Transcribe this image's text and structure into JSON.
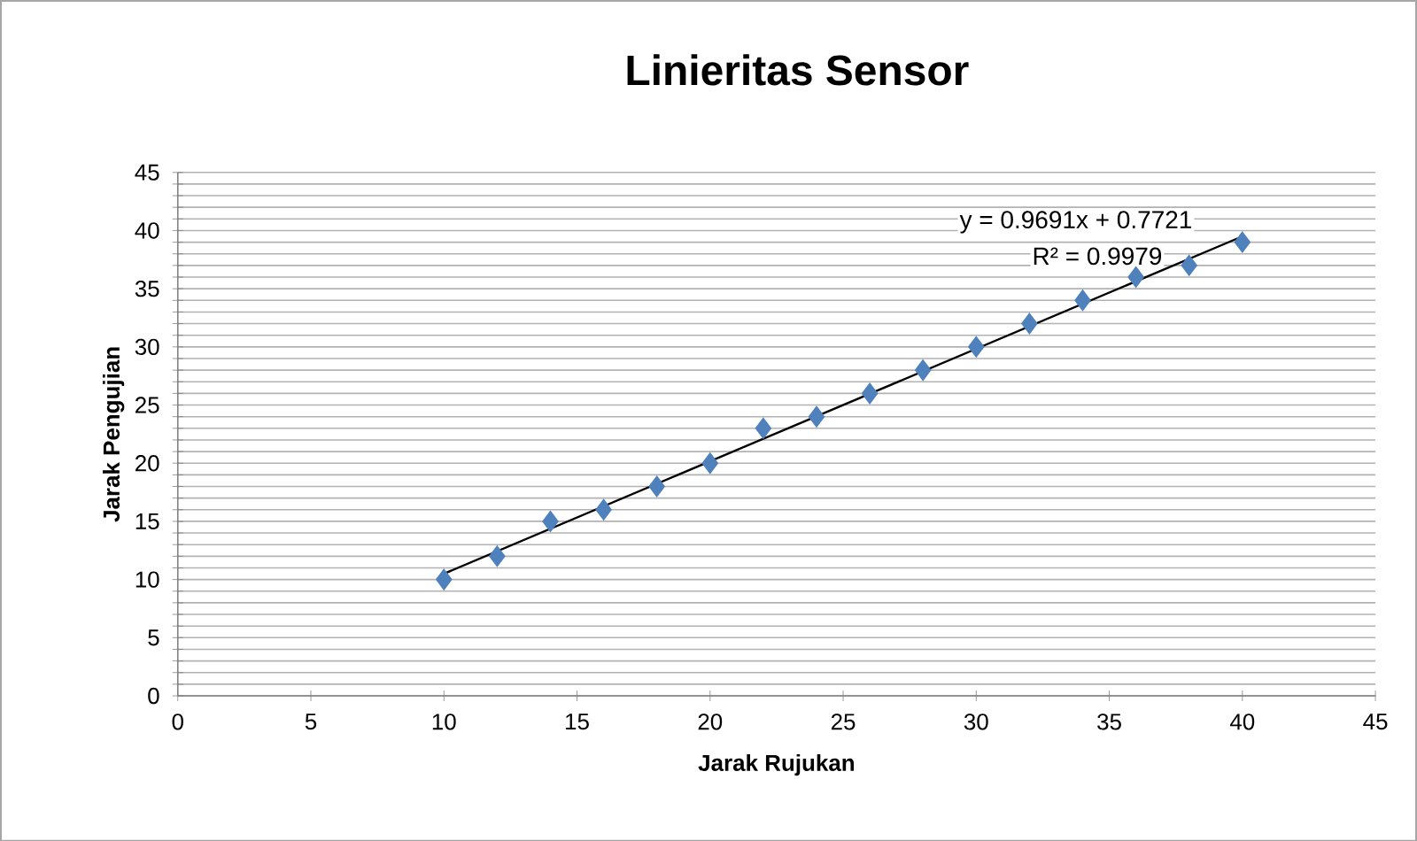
{
  "chart_data": {
    "type": "scatter",
    "title": "Linieritas  Sensor",
    "xlabel": "Jarak Rujukan",
    "ylabel": "Jarak Pengujian",
    "series": [
      {
        "color": "#4f81bd",
        "marker": "diamond",
        "x": [
          10,
          12,
          14,
          16,
          18,
          20,
          22,
          24,
          26,
          28,
          30,
          32,
          34,
          36,
          38,
          40
        ],
        "values": [
          10,
          12,
          15,
          16,
          18,
          20,
          23,
          24,
          26,
          28,
          30,
          32,
          34,
          36,
          37,
          39
        ]
      },
      {
        "type": "line",
        "color": "#000000",
        "marker": "none",
        "x": [
          10,
          40
        ],
        "values": [
          10.5,
          39.5
        ]
      }
    ],
    "annotations": [
      "y = 0.9691x + 0.7721",
      "R² = 0.9979"
    ],
    "xlim": [
      0,
      45
    ],
    "xticks": [
      0,
      5,
      10,
      15,
      20,
      25,
      30,
      35,
      40,
      45
    ],
    "ylim": [
      0,
      45
    ],
    "yticks": [
      0,
      {
        "value": 1,
        "label": null
      },
      {
        "value": 2,
        "label": null
      },
      {
        "value": 3,
        "label": null
      },
      {
        "value": 4,
        "label": null
      },
      5,
      {
        "value": 6,
        "label": null
      },
      {
        "value": 7,
        "label": null
      },
      {
        "value": 8,
        "label": null
      },
      {
        "value": 9,
        "label": null
      },
      10,
      {
        "value": 11,
        "label": null
      },
      {
        "value": 12,
        "label": null
      },
      {
        "value": 13,
        "label": null
      },
      {
        "value": 14,
        "label": null
      },
      15,
      {
        "value": 16,
        "label": null
      },
      {
        "value": 17,
        "label": null
      },
      {
        "value": 18,
        "label": null
      },
      {
        "value": 19,
        "label": null
      },
      20,
      {
        "value": 21,
        "label": null
      },
      {
        "value": 22,
        "label": null
      },
      {
        "value": 23,
        "label": null
      },
      {
        "value": 24,
        "label": null
      },
      25,
      {
        "value": 26,
        "label": null
      },
      {
        "value": 27,
        "label": null
      },
      {
        "value": 28,
        "label": null
      },
      {
        "value": 29,
        "label": null
      },
      30,
      {
        "value": 31,
        "label": null
      },
      {
        "value": 32,
        "label": null
      },
      {
        "value": 33,
        "label": null
      },
      {
        "value": 34,
        "label": null
      },
      35,
      {
        "value": 36,
        "label": null
      },
      {
        "value": 37,
        "label": null
      },
      {
        "value": 38,
        "label": null
      },
      {
        "value": 39,
        "label": null
      },
      40,
      {
        "value": 41,
        "label": null
      },
      {
        "value": 42,
        "label": null
      },
      {
        "value": 43,
        "label": null
      },
      {
        "value": 44,
        "label": null
      },
      45
    ],
    "grid": "y"
  }
}
